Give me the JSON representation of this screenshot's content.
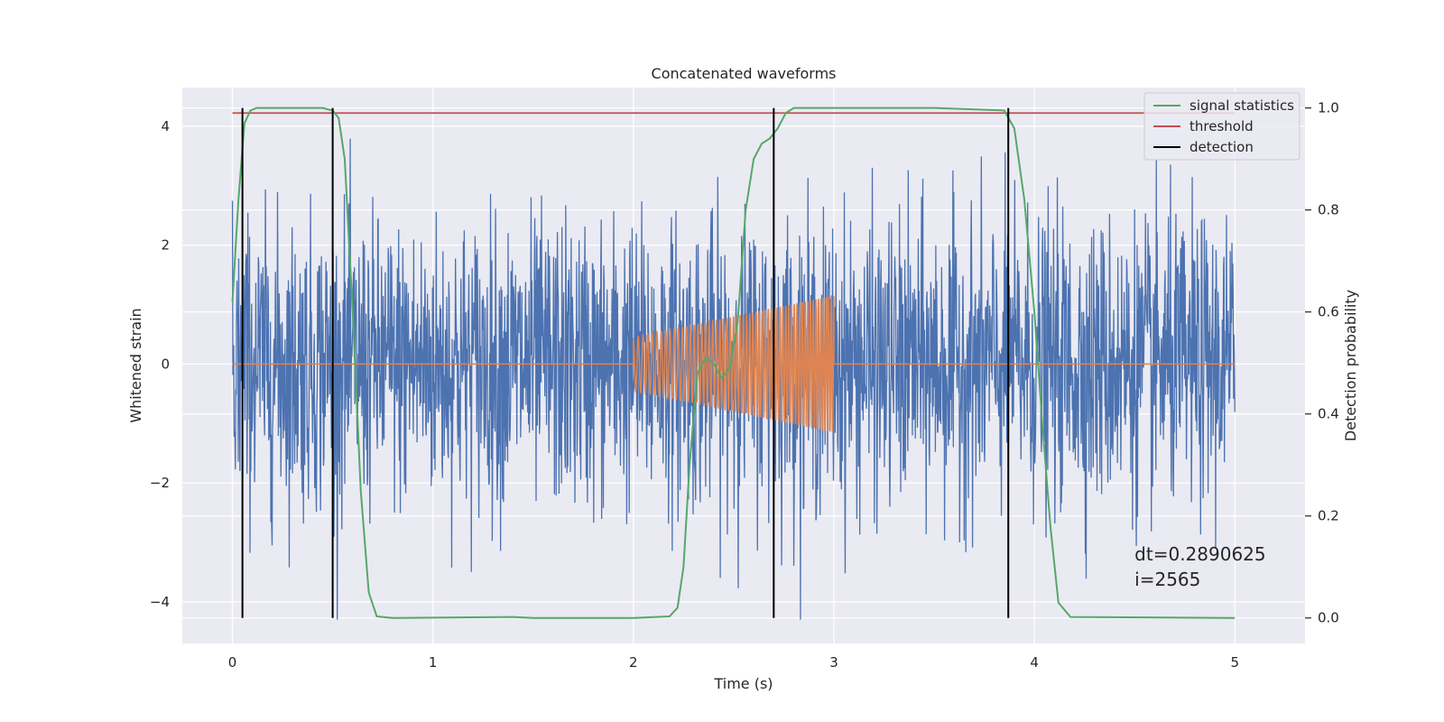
{
  "chart_data": {
    "type": "line",
    "title": "Concatenated waveforms",
    "xlabel": "Time (s)",
    "ylabel": "Whitened strain",
    "y2label": "Detection probability",
    "xlim": [
      -0.25,
      5.35
    ],
    "ylim": [
      -4.7,
      4.65
    ],
    "y2lim": [
      -0.05,
      1.04
    ],
    "x_ticks": [
      0,
      1,
      2,
      3,
      4,
      5
    ],
    "y_ticks": [
      -4,
      -2,
      0,
      2,
      4
    ],
    "y2_ticks": [
      0.0,
      0.2,
      0.4,
      0.6,
      0.8,
      1.0
    ],
    "x_tick_labels": [
      "0",
      "1",
      "2",
      "3",
      "4",
      "5"
    ],
    "y_tick_labels": [
      "−4",
      "−2",
      "0",
      "2",
      "4"
    ],
    "y2_tick_labels": [
      "0.0",
      "0.2",
      "0.4",
      "0.6",
      "0.8",
      "1.0"
    ],
    "grid": true,
    "legend_position": "top-right",
    "legend": [
      "signal statistics",
      "threshold",
      "detection"
    ],
    "noise": {
      "x_range": [
        0,
        5
      ],
      "amplitude": 1.2,
      "min": -4.3,
      "max": 4.25,
      "color": "#4c72b0"
    },
    "injection": {
      "x_range": [
        2.0,
        3.0
      ],
      "amplitude_start": 0.45,
      "amplitude_end": 1.15,
      "freq_start": 40,
      "freq_end": 80,
      "color": "#dd8452"
    },
    "signal_statistics": {
      "axis": "y2",
      "color": "#55a868",
      "x": [
        0.0,
        0.03,
        0.06,
        0.09,
        0.12,
        0.18,
        0.3,
        0.45,
        0.5,
        0.53,
        0.56,
        0.6,
        0.64,
        0.68,
        0.72,
        0.8,
        1.4,
        1.5,
        2.0,
        2.18,
        2.22,
        2.25,
        2.28,
        2.32,
        2.36,
        2.4,
        2.44,
        2.48,
        2.52,
        2.56,
        2.6,
        2.64,
        2.68,
        2.72,
        2.76,
        2.8,
        3.0,
        3.5,
        3.85,
        3.9,
        3.95,
        4.0,
        4.04,
        4.08,
        4.12,
        4.18,
        5.0
      ],
      "y": [
        0.62,
        0.82,
        0.97,
        0.995,
        1.0,
        1.0,
        1.0,
        1.0,
        0.995,
        0.98,
        0.9,
        0.6,
        0.25,
        0.05,
        0.003,
        0.0,
        0.002,
        0.0,
        0.0,
        0.003,
        0.02,
        0.1,
        0.3,
        0.48,
        0.51,
        0.5,
        0.47,
        0.49,
        0.58,
        0.8,
        0.9,
        0.93,
        0.94,
        0.96,
        0.99,
        1.0,
        1.0,
        1.0,
        0.995,
        0.96,
        0.82,
        0.6,
        0.38,
        0.18,
        0.03,
        0.002,
        0.0
      ]
    },
    "threshold": {
      "axis": "y2",
      "color": "#c44e52",
      "value": 0.99,
      "x_range": [
        0,
        5
      ]
    },
    "detection": {
      "color": "#000000",
      "x": [
        0.05,
        0.5,
        2.7,
        3.87
      ]
    },
    "annotation": {
      "lines": [
        "dt=0.2890625",
        " i=2565"
      ],
      "x": 4.5,
      "y": -3.3
    }
  }
}
